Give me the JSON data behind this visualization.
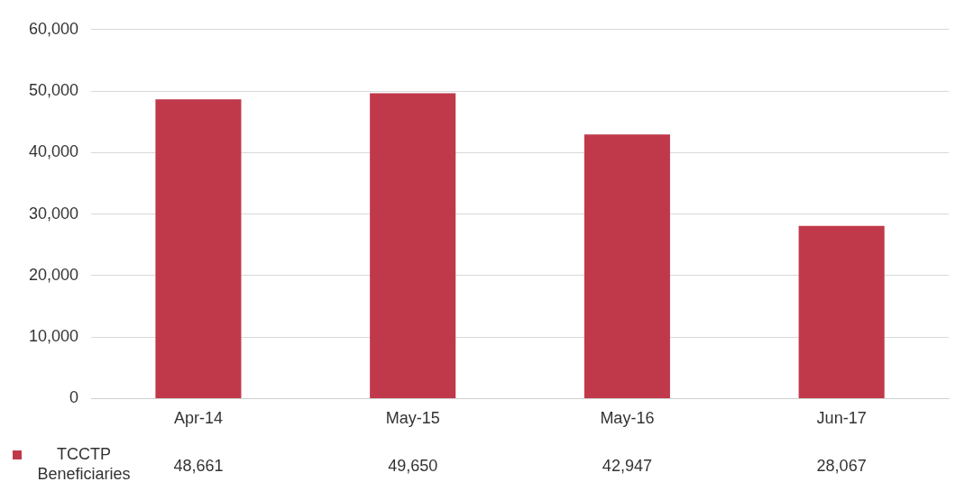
{
  "chart_data": {
    "type": "bar",
    "categories": [
      "Apr-14",
      "May-15",
      "May-16",
      "Jun-17"
    ],
    "series": [
      {
        "name": "TCCTP Beneficiaries",
        "color": "#c0394b",
        "values": [
          48661,
          49650,
          42947,
          28067
        ],
        "value_labels": [
          "48,661",
          "49,650",
          "42,947",
          "28,067"
        ]
      }
    ],
    "ylim": [
      0,
      60000
    ],
    "yticks": [
      {
        "value": 0,
        "label": "0"
      },
      {
        "value": 10000,
        "label": "10,000"
      },
      {
        "value": 20000,
        "label": "20,000"
      },
      {
        "value": 30000,
        "label": "30,000"
      },
      {
        "value": 40000,
        "label": "40,000"
      },
      {
        "value": 50000,
        "label": "50,000"
      },
      {
        "value": 60000,
        "label": "60,000"
      }
    ],
    "grid": "y",
    "legend": "bottom left"
  }
}
